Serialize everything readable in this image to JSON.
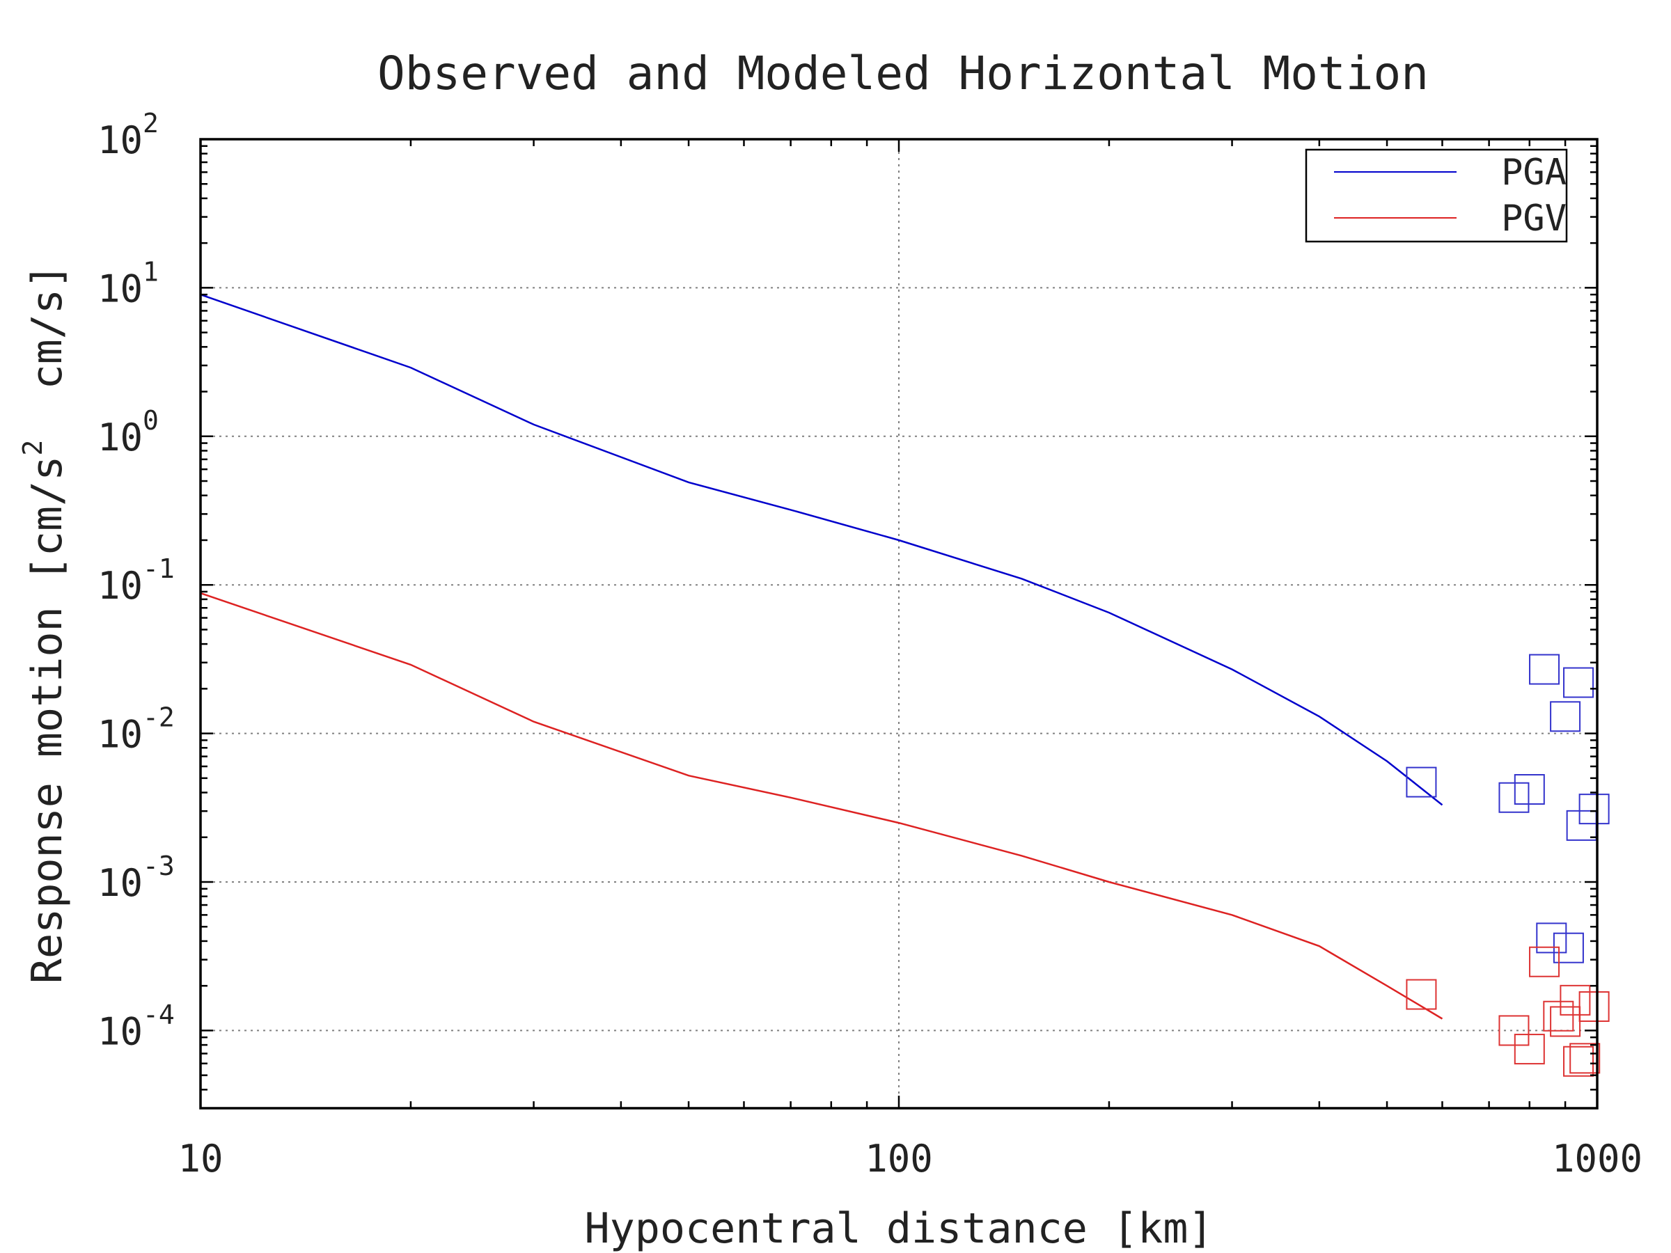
{
  "chart_data": {
    "type": "line",
    "title": "Observed and Modeled Horizontal Motion",
    "xlabel": "Hypocentral distance [km]",
    "ylabel_parts": [
      "Response motion [cm/s",
      "2",
      "  cm/s]"
    ],
    "xscale": "log",
    "yscale": "log",
    "xlim": [
      10,
      1000
    ],
    "ylim": [
      3e-05,
      100
    ],
    "x_ticks": [
      {
        "value": 10,
        "label": "10"
      },
      {
        "value": 100,
        "label": "100"
      },
      {
        "value": 1000,
        "label": "1000"
      }
    ],
    "y_ticks": [
      {
        "value": 100,
        "base": "10",
        "exp": "2"
      },
      {
        "value": 10,
        "base": "10",
        "exp": "1"
      },
      {
        "value": 1,
        "base": "10",
        "exp": "0"
      },
      {
        "value": 0.1,
        "base": "10",
        "exp": "-1"
      },
      {
        "value": 0.01,
        "base": "10",
        "exp": "-2"
      },
      {
        "value": 0.001,
        "base": "10",
        "exp": "-3"
      },
      {
        "value": 0.0001,
        "base": "10",
        "exp": "-4"
      }
    ],
    "grid": true,
    "legend_position": "top-right",
    "series": [
      {
        "name": "PGA",
        "color": "#0000cc",
        "x": [
          10,
          20,
          30,
          50,
          70,
          100,
          150,
          200,
          300,
          400,
          500,
          600
        ],
        "y": [
          9.0,
          2.9,
          1.2,
          0.49,
          0.32,
          0.2,
          0.11,
          0.065,
          0.027,
          0.013,
          0.0065,
          0.0033
        ]
      },
      {
        "name": "PGV",
        "color": "#dd2222",
        "x": [
          10,
          20,
          30,
          50,
          70,
          100,
          150,
          200,
          300,
          400,
          500,
          600
        ],
        "y": [
          0.088,
          0.029,
          0.012,
          0.0052,
          0.0037,
          0.0025,
          0.0015,
          0.001,
          0.0006,
          0.00037,
          0.0002,
          0.00012
        ]
      }
    ],
    "observed": [
      {
        "series": "PGA",
        "color": "#3333cc",
        "points": [
          {
            "x": 560,
            "y": 0.0047
          },
          {
            "x": 760,
            "y": 0.0037
          },
          {
            "x": 800,
            "y": 0.0042
          },
          {
            "x": 840,
            "y": 0.027
          },
          {
            "x": 900,
            "y": 0.013
          },
          {
            "x": 940,
            "y": 0.022
          },
          {
            "x": 950,
            "y": 0.0024
          },
          {
            "x": 990,
            "y": 0.0031
          },
          {
            "x": 860,
            "y": 0.00042
          },
          {
            "x": 910,
            "y": 0.00036
          }
        ]
      },
      {
        "series": "PGV",
        "color": "#dd3333",
        "points": [
          {
            "x": 560,
            "y": 0.000175
          },
          {
            "x": 760,
            "y": 0.0001
          },
          {
            "x": 800,
            "y": 7.5e-05
          },
          {
            "x": 840,
            "y": 0.00029
          },
          {
            "x": 880,
            "y": 0.000125
          },
          {
            "x": 900,
            "y": 0.000115
          },
          {
            "x": 930,
            "y": 0.00016
          },
          {
            "x": 940,
            "y": 6.2e-05
          },
          {
            "x": 960,
            "y": 6.5e-05
          },
          {
            "x": 990,
            "y": 0.000145
          }
        ]
      }
    ]
  }
}
